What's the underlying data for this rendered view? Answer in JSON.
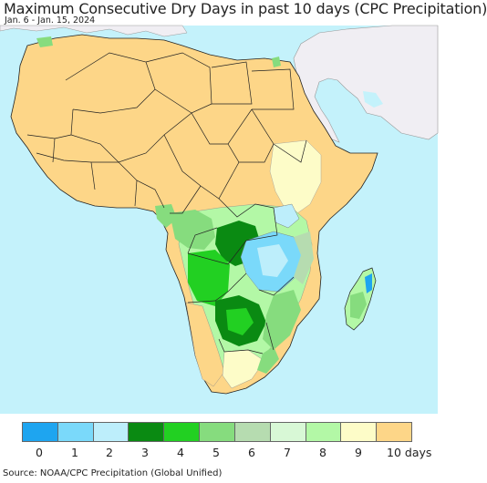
{
  "title": "Maximum Consecutive Dry Days in past 10 days (CPC Precipitation)",
  "date_range": "Jan. 6 - Jan. 15, 2024",
  "source": "Source: NOAA/CPC Precipitation (Global Unified)",
  "colors": {
    "ocean": "#c4f2fb",
    "outside_land": "#f0eef3",
    "border": "#222222"
  },
  "legend": {
    "items": [
      {
        "label": "0",
        "color": "#1ea5f0"
      },
      {
        "label": "1",
        "color": "#7ad9fa"
      },
      {
        "label": "2",
        "color": "#bdeefb"
      },
      {
        "label": "3",
        "color": "#0a8a12"
      },
      {
        "label": "4",
        "color": "#22d022"
      },
      {
        "label": "5",
        "color": "#86dc7e"
      },
      {
        "label": "6",
        "color": "#b6dcb0"
      },
      {
        "label": "7",
        "color": "#d8f8d6"
      },
      {
        "label": "8",
        "color": "#b3f8a6"
      },
      {
        "label": "9",
        "color": "#fdfcc8"
      },
      {
        "label": "10 days",
        "color": "#fdd688"
      }
    ]
  }
}
